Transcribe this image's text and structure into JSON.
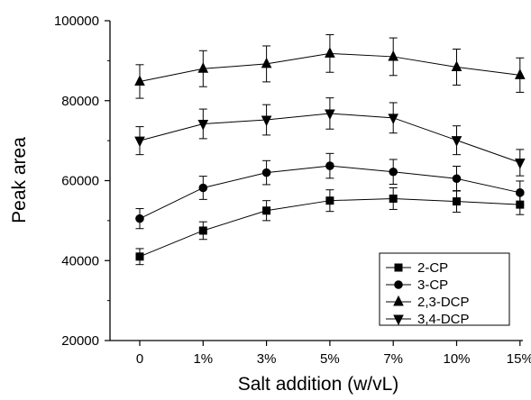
{
  "chart_data": {
    "type": "line",
    "title": "",
    "xlabel": "Salt addition (w/vL)",
    "ylabel": "Peak area",
    "categories": [
      "0",
      "1%",
      "3%",
      "5%",
      "7%",
      "10%",
      "15%"
    ],
    "ylim": [
      20000,
      100000
    ],
    "yticks": [
      "20000",
      "40000",
      "60000",
      "80000",
      "100000"
    ],
    "grid": false,
    "legend_position": "bottom-right",
    "colors": {
      "line": "#000000",
      "axis": "#000000",
      "background": "#ffffff"
    },
    "series": [
      {
        "name": "2-CP",
        "marker": "square",
        "values": [
          41000,
          47500,
          52500,
          55000,
          55500,
          54800,
          54000
        ],
        "errors": [
          2000,
          2200,
          2500,
          2700,
          2700,
          2700,
          2500
        ]
      },
      {
        "name": "3-CP",
        "marker": "circle",
        "values": [
          50500,
          58200,
          62000,
          63700,
          62200,
          60500,
          57000
        ],
        "errors": [
          2500,
          2900,
          3000,
          3100,
          3100,
          3100,
          2900
        ]
      },
      {
        "name": "2,3-DCP",
        "marker": "triangle-up",
        "values": [
          84800,
          88000,
          89200,
          91800,
          91000,
          88400,
          86400
        ],
        "errors": [
          4200,
          4500,
          4500,
          4700,
          4700,
          4500,
          4300
        ]
      },
      {
        "name": "3,4-DCP",
        "marker": "triangle-down",
        "values": [
          70000,
          74200,
          75200,
          76800,
          75700,
          70100,
          64500
        ],
        "errors": [
          3500,
          3700,
          3800,
          3900,
          3800,
          3600,
          3300
        ]
      }
    ]
  }
}
